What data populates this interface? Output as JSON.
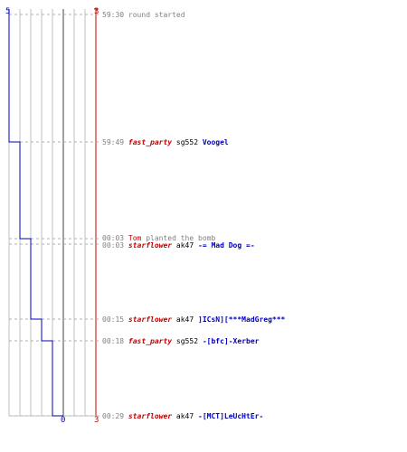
{
  "teams": {
    "ct": {
      "start_count": "5",
      "end_count": "0",
      "color": "#0000c0"
    },
    "t": {
      "start_count": "3",
      "end_count": "3",
      "color": "#c00000"
    }
  },
  "colors": {
    "time": "#808080",
    "message": "#808080",
    "t_player": "#c00000",
    "ct_player": "#0000c0",
    "weapon": "#000000",
    "grid": "#c0c0c0",
    "dash": "#b0b0b0"
  },
  "events": [
    {
      "time": "59:30",
      "type": "message",
      "text": "round started"
    },
    {
      "time": "59:49",
      "type": "kill",
      "killer": "fast_party",
      "killer_team": "t",
      "weapon": "sg552",
      "victim": "Voogel",
      "victim_team": "ct"
    },
    {
      "time": "00:03",
      "type": "bomb",
      "player": "Tom",
      "player_team": "t",
      "text": "planted the bomb"
    },
    {
      "time": "00:03",
      "type": "kill",
      "killer": "starflower",
      "killer_team": "t",
      "weapon": "ak47",
      "victim": "-= Mad Dog =-",
      "victim_team": "ct"
    },
    {
      "time": "00:15",
      "type": "kill",
      "killer": "starflower",
      "killer_team": "t",
      "weapon": "ak47",
      "victim": "]ICsN][***MadGreg***",
      "victim_team": "ct"
    },
    {
      "time": "00:18",
      "type": "kill",
      "killer": "fast_party",
      "killer_team": "t",
      "weapon": "sg552",
      "victim": "-[bfc]-Xerber",
      "victim_team": "ct"
    },
    {
      "time": "00:29",
      "type": "kill",
      "killer": "starflower",
      "killer_team": "t",
      "weapon": "ak47",
      "victim": "-[MCT]LeUcHtEr-",
      "victim_team": "ct"
    }
  ]
}
